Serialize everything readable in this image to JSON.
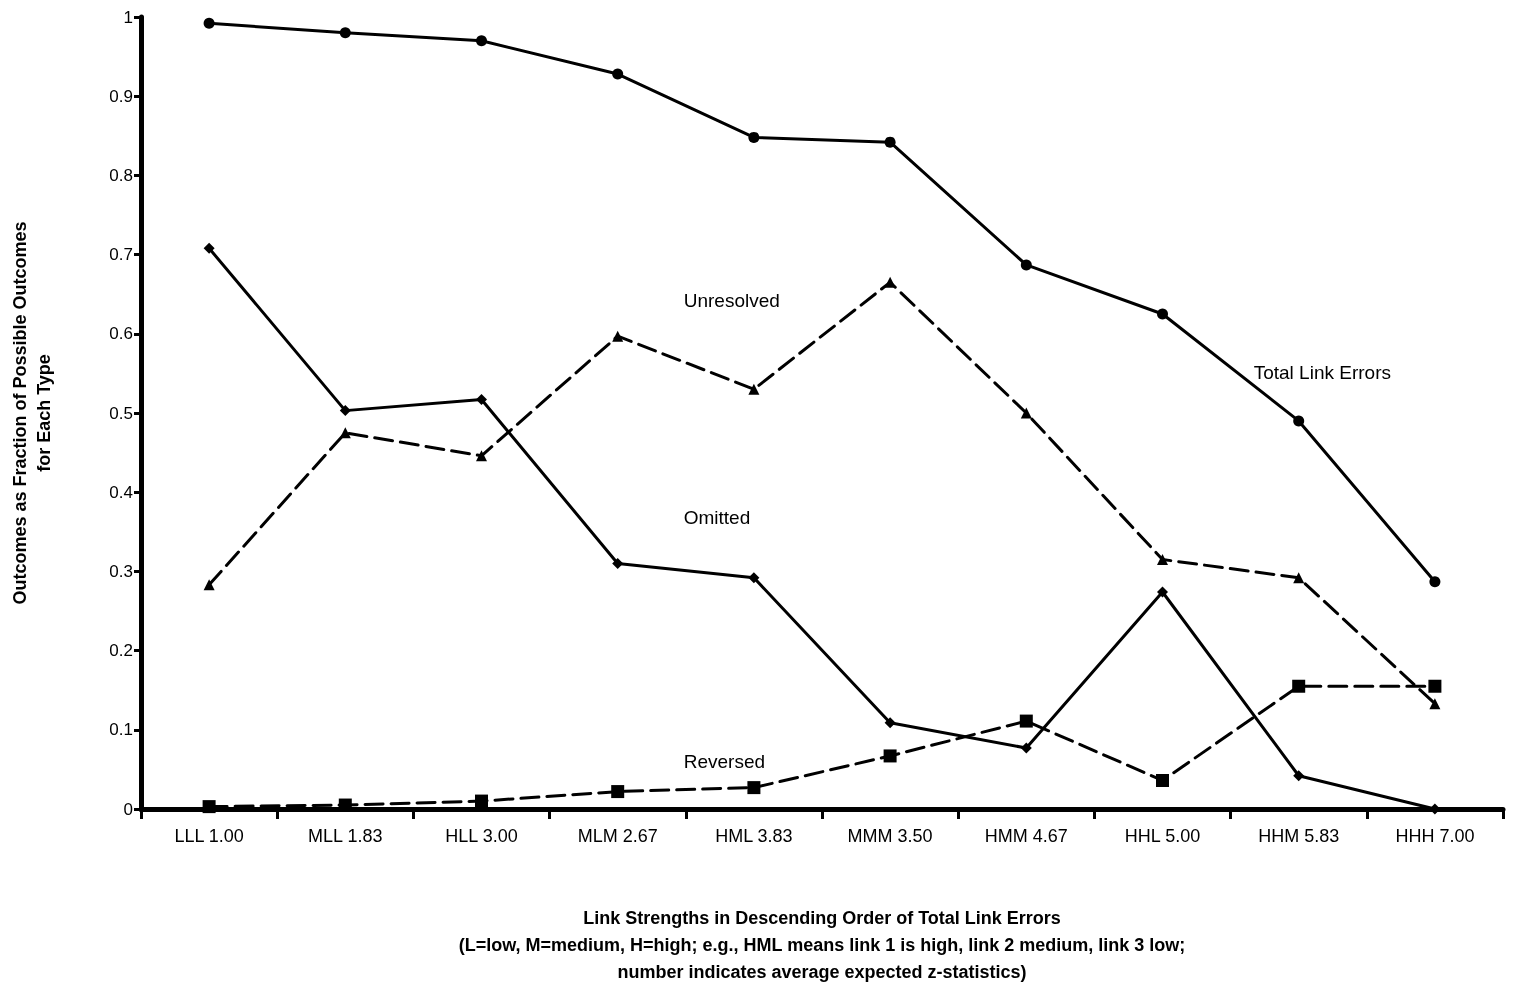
{
  "chart_data": {
    "type": "line",
    "xlabel": "Link Strengths in Descending Order of Total Link Errors\n(L=low, M=medium, H=high; e.g., HML means link 1 is high, link 2 medium, link 3 low;\nnumber indicates average expected z-statistics)",
    "ylabel": "Outcomes as Fraction of Possible Outcomes\nfor Each Type",
    "categories": [
      "LLL 1.00",
      "MLL 1.83",
      "HLL 3.00",
      "MLM 2.67",
      "HML 3.83",
      "MMM 3.50",
      "HMM 4.67",
      "HHL 5.00",
      "HHM 5.83",
      "HHH 7.00"
    ],
    "series": [
      {
        "name": "Total Link Errors",
        "color": "#000000",
        "marker": "circle",
        "line_style": "solid",
        "values": [
          0.992,
          0.98,
          0.97,
          0.928,
          0.848,
          0.842,
          0.687,
          0.625,
          0.49,
          0.287
        ]
      },
      {
        "name": "Unresolved",
        "color": "#000000",
        "marker": "triangle",
        "line_style": "dashed",
        "values": [
          0.283,
          0.475,
          0.446,
          0.597,
          0.53,
          0.665,
          0.5,
          0.315,
          0.292,
          0.133
        ]
      },
      {
        "name": "Omitted",
        "color": "#000000",
        "marker": "diamond",
        "line_style": "solid",
        "values": [
          0.708,
          0.503,
          0.517,
          0.31,
          0.292,
          0.109,
          0.077,
          0.274,
          0.042,
          0
        ]
      },
      {
        "name": "Reversed",
        "color": "#000000",
        "marker": "square",
        "line_style": "dashed",
        "values": [
          0.003,
          0.005,
          0.01,
          0.022,
          0.027,
          0.067,
          0.111,
          0.036,
          0.155,
          0.155
        ]
      }
    ],
    "ylim": [
      0,
      1
    ],
    "yticks": [
      0,
      0.1,
      0.2,
      0.3,
      0.4,
      0.5,
      0.6,
      0.7,
      0.8,
      0.9,
      1
    ],
    "grid": false,
    "legend": false
  }
}
